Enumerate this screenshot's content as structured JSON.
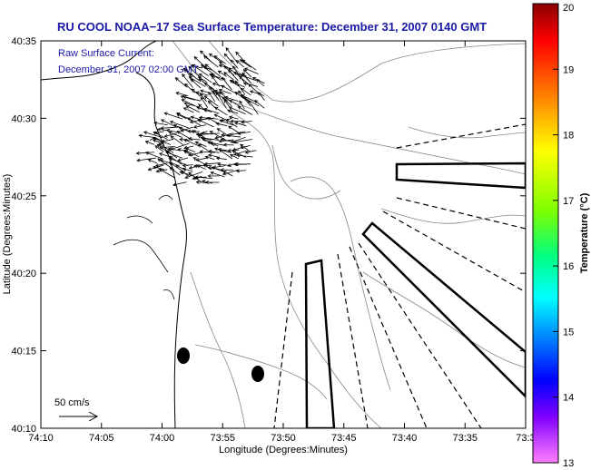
{
  "title": "RU COOL  NOAA−17  Sea Surface Temperature:  December 31, 2007 0140 GMT",
  "current_label": "Raw Surface Current:",
  "current_time": "December 31, 2007 02:00 GMT",
  "scale_label": "50 cm/s",
  "x_axis": {
    "label": "Longitude (Degrees:Minutes)",
    "ticks": [
      "74:10",
      "74:05",
      "74:00",
      "73:55",
      "73:50",
      "73:45",
      "73:40",
      "73:35",
      "73:3"
    ]
  },
  "y_axis": {
    "label": "Latitude (Degrees:Minutes)",
    "ticks": [
      "40:35",
      "40:30",
      "40:25",
      "40:20",
      "40:15",
      "40:10"
    ]
  },
  "colorbar": {
    "label": "Temperature (°C)",
    "ticks": [
      "20",
      "19",
      "18",
      "17",
      "16",
      "15",
      "14",
      "13"
    ],
    "colors": [
      "#8b0000",
      "#ff0000",
      "#ff8000",
      "#ffff00",
      "#80ff00",
      "#00ff80",
      "#00ffff",
      "#0080ff",
      "#0000ff",
      "#8000ff",
      "#ff80ff"
    ]
  }
}
